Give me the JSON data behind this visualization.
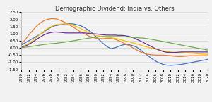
{
  "title": "Demographic Dividend: India vs. Others",
  "years": [
    1970,
    1971,
    1972,
    1973,
    1974,
    1975,
    1976,
    1977,
    1978,
    1979,
    1980,
    1981,
    1982,
    1983,
    1984,
    1985,
    1986,
    1987,
    1988,
    1989,
    1990,
    1991,
    1992,
    1993,
    1994,
    1995,
    1996,
    1997,
    1998,
    1999,
    2000,
    2001,
    2002,
    2003,
    2004,
    2005,
    2006,
    2007,
    2008,
    2009,
    2010,
    2011,
    2012,
    2013,
    2014,
    2015,
    2016,
    2017,
    2018,
    2019,
    2020
  ],
  "series": {
    "PRC": [
      0.2,
      0.35,
      0.5,
      0.65,
      0.8,
      0.95,
      1.1,
      1.3,
      1.45,
      1.55,
      1.6,
      1.65,
      1.68,
      1.7,
      1.68,
      1.62,
      1.55,
      1.42,
      1.25,
      1.05,
      0.8,
      0.55,
      0.3,
      0.1,
      -0.05,
      0.0,
      0.1,
      0.2,
      0.25,
      0.22,
      0.15,
      0.05,
      -0.15,
      -0.35,
      -0.55,
      -0.75,
      -0.92,
      -1.05,
      -1.15,
      -1.2,
      -1.22,
      -1.2,
      -1.18,
      -1.15,
      -1.1,
      -1.05,
      -1.0,
      -0.95,
      -0.9,
      -0.85,
      -0.8
    ],
    "South Korea": [
      0.28,
      0.55,
      0.9,
      1.2,
      1.5,
      1.72,
      1.9,
      2.0,
      2.05,
      2.05,
      1.98,
      1.88,
      1.75,
      1.6,
      1.45,
      1.28,
      1.12,
      0.98,
      0.85,
      0.75,
      0.68,
      0.65,
      0.65,
      0.68,
      0.68,
      0.62,
      0.52,
      0.4,
      0.28,
      0.15,
      0.0,
      -0.15,
      -0.28,
      -0.38,
      -0.45,
      -0.48,
      -0.5,
      -0.5,
      -0.5,
      -0.52,
      -0.55,
      -0.58,
      -0.6,
      -0.6,
      -0.58,
      -0.55,
      -0.55,
      -0.55,
      -0.55,
      -0.55,
      -0.55
    ],
    "Thailand": [
      0.08,
      0.18,
      0.32,
      0.5,
      0.72,
      0.95,
      1.15,
      1.35,
      1.5,
      1.6,
      1.65,
      1.68,
      1.68,
      1.65,
      1.58,
      1.48,
      1.35,
      1.22,
      1.08,
      0.98,
      0.88,
      0.82,
      0.78,
      0.75,
      0.72,
      0.68,
      0.62,
      0.55,
      0.48,
      0.42,
      0.35,
      0.28,
      0.2,
      0.12,
      0.05,
      -0.02,
      -0.08,
      -0.14,
      -0.2,
      -0.25,
      -0.28,
      -0.3,
      -0.32,
      -0.33,
      -0.35,
      -0.36,
      -0.38,
      -0.4,
      -0.42,
      -0.44,
      -0.45
    ],
    "Vietnam": [
      0.05,
      0.12,
      0.25,
      0.4,
      0.58,
      0.75,
      0.9,
      1.02,
      1.08,
      1.12,
      1.1,
      1.08,
      1.05,
      1.05,
      1.05,
      1.05,
      1.05,
      1.05,
      1.02,
      1.0,
      0.98,
      0.95,
      0.92,
      0.9,
      0.9,
      0.9,
      0.88,
      0.88,
      0.85,
      0.8,
      0.72,
      0.6,
      0.48,
      0.35,
      0.22,
      0.08,
      -0.05,
      -0.15,
      -0.25,
      -0.3,
      -0.32,
      -0.32,
      -0.3,
      -0.28,
      -0.28,
      -0.28,
      -0.28,
      -0.28,
      -0.28,
      -0.28,
      -0.28
    ],
    "India": [
      0.02,
      0.05,
      0.08,
      0.12,
      0.16,
      0.2,
      0.24,
      0.27,
      0.3,
      0.32,
      0.35,
      0.38,
      0.42,
      0.46,
      0.5,
      0.55,
      0.6,
      0.64,
      0.68,
      0.72,
      0.75,
      0.78,
      0.8,
      0.8,
      0.8,
      0.8,
      0.8,
      0.8,
      0.78,
      0.76,
      0.74,
      0.72,
      0.7,
      0.68,
      0.64,
      0.6,
      0.55,
      0.5,
      0.45,
      0.4,
      0.35,
      0.3,
      0.25,
      0.2,
      0.15,
      0.1,
      0.05,
      0.0,
      -0.05,
      -0.1,
      -0.15
    ]
  },
  "colors": {
    "PRC": "#4472C4",
    "South Korea": "#ED7D31",
    "Thailand": "#FFC000",
    "Vietnam": "#7030A0",
    "India": "#70AD47"
  },
  "ylim": [
    -1.5,
    2.5
  ],
  "yticks": [
    -1.5,
    -1.0,
    -0.5,
    0.0,
    0.5,
    1.0,
    1.5,
    2.0,
    2.5
  ],
  "background_color": "#f2f2f2",
  "plot_bg_color": "#f2f2f2",
  "title_fontsize": 6,
  "legend_fontsize": 5,
  "tick_fontsize": 4
}
